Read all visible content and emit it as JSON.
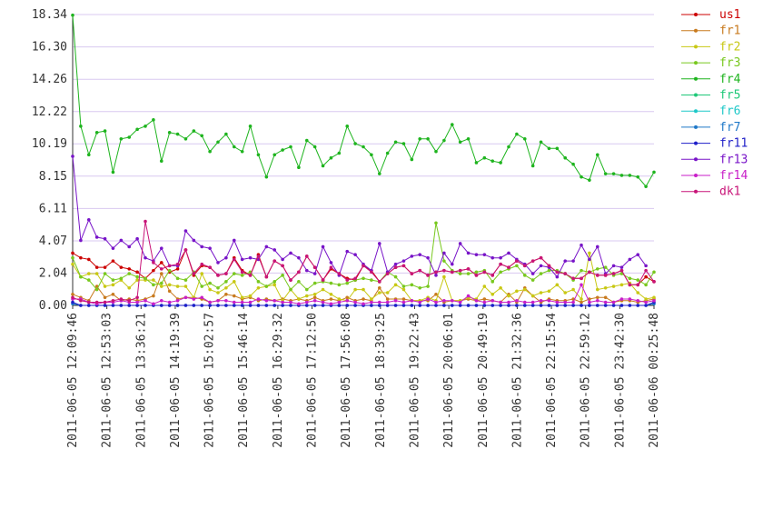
{
  "chart_data": {
    "type": "line",
    "title": "",
    "xlabel": "",
    "ylabel": "",
    "ylim": [
      0,
      18.34
    ],
    "y_ticks": [
      "0.00",
      "2.04",
      "4.07",
      "6.11",
      "8.15",
      "10.19",
      "12.22",
      "14.26",
      "16.30",
      "18.34"
    ],
    "x_tick_labels": [
      "2011-06-05 12:09:46",
      "2011-06-05 12:53:03",
      "2011-06-05 13:36:21",
      "2011-06-05 14:19:39",
      "2011-06-05 15:02:57",
      "2011-06-05 15:46:14",
      "2011-06-05 16:29:32",
      "2011-06-05 17:12:50",
      "2011-06-05 17:56:08",
      "2011-06-05 18:39:25",
      "2011-06-05 19:22:43",
      "2011-06-05 20:06:01",
      "2011-06-05 20:49:19",
      "2011-06-05 21:32:36",
      "2011-06-05 22:15:54",
      "2011-06-05 22:59:12",
      "2011-06-05 23:42:30",
      "2011-06-06 00:25:48"
    ],
    "grid": true,
    "legend_position": "right",
    "series": [
      {
        "name": "us1",
        "color": "#cc0000",
        "values": [
          3.3,
          3.0,
          2.9,
          2.4,
          2.4,
          2.8,
          2.4,
          2.3,
          2.1,
          1.7,
          2.2,
          2.7,
          2.1,
          2.3,
          3.5,
          1.9,
          2.5,
          2.4,
          1.9,
          2.0,
          3.0,
          2.2,
          1.9,
          3.2,
          1.8,
          2.8,
          2.5,
          1.6,
          2.1,
          3.1,
          2.4,
          1.6,
          2.3,
          2.0,
          1.7,
          1.6,
          2.5,
          2.2,
          1.5,
          2.0,
          2.4,
          2.5,
          2.0,
          2.2,
          1.9,
          2.1,
          2.2,
          2.1,
          2.2,
          2.3,
          1.9,
          2.1,
          1.9,
          2.6,
          2.4,
          2.8,
          2.5,
          2.8,
          3.0,
          2.5,
          2.1,
          2.0,
          1.7,
          1.7,
          2.1,
          1.9,
          1.9,
          2.0,
          2.2,
          1.3,
          1.3,
          1.8,
          1.5
        ]
      },
      {
        "name": "fr1",
        "color": "#c87a1e",
        "values": [
          0.7,
          0.5,
          0.3,
          1.2,
          0.5,
          0.7,
          0.3,
          0.4,
          0.3,
          0.4,
          0.6,
          2.0,
          0.9,
          0.4,
          0.5,
          0.5,
          0.4,
          0.2,
          0.3,
          0.7,
          0.6,
          0.4,
          0.5,
          0.3,
          0.4,
          0.3,
          0.4,
          0.3,
          0.4,
          0.3,
          0.5,
          0.3,
          0.4,
          0.3,
          0.5,
          0.3,
          0.4,
          0.3,
          1.1,
          0.4,
          0.4,
          0.4,
          0.3,
          0.3,
          0.3,
          0.7,
          0.2,
          0.3,
          0.3,
          0.4,
          0.3,
          0.4,
          0.3,
          0.2,
          0.7,
          0.2,
          1.1,
          0.6,
          0.2,
          0.4,
          0.3,
          0.3,
          0.4,
          0.2,
          0.4,
          0.5,
          0.5,
          0.2,
          0.3,
          0.3,
          0.2,
          0.3,
          0.4
        ]
      },
      {
        "name": "fr2",
        "color": "#c8c814",
        "values": [
          2.6,
          1.8,
          2.0,
          2.0,
          1.2,
          1.3,
          1.6,
          1.1,
          1.6,
          1.6,
          1.6,
          1.2,
          1.3,
          1.2,
          1.2,
          0.5,
          2.0,
          1.0,
          0.8,
          1.1,
          1.5,
          0.5,
          0.6,
          1.1,
          1.2,
          1.3,
          0.3,
          1.0,
          0.4,
          0.6,
          0.7,
          1.0,
          0.7,
          0.4,
          0.3,
          1.0,
          1.0,
          0.4,
          0.8,
          0.8,
          1.3,
          1.0,
          0.3,
          0.3,
          0.5,
          0.3,
          1.8,
          0.3,
          0.3,
          0.5,
          0.4,
          1.2,
          0.7,
          1.1,
          0.6,
          0.9,
          1.0,
          0.6,
          0.8,
          0.9,
          1.3,
          0.8,
          1.0,
          0.4,
          3.3,
          1.0,
          1.1,
          1.2,
          1.3,
          1.4,
          0.8,
          0.4,
          0.5
        ]
      },
      {
        "name": "fr3",
        "color": "#78c81e",
        "values": [
          3.0,
          1.8,
          1.6,
          1.0,
          2.0,
          1.6,
          1.7,
          2.0,
          1.8,
          1.7,
          1.3,
          1.4,
          2.2,
          1.7,
          1.6,
          2.1,
          1.2,
          1.4,
          1.1,
          1.5,
          2.0,
          1.9,
          2.1,
          1.5,
          1.2,
          1.5,
          1.9,
          1.0,
          1.5,
          1.0,
          1.4,
          1.5,
          1.4,
          1.3,
          1.4,
          1.6,
          1.7,
          1.6,
          1.5,
          2.1,
          1.8,
          1.2,
          1.3,
          1.1,
          1.2,
          5.2,
          2.8,
          2.2,
          2.0,
          2.0,
          2.1,
          2.2,
          1.5,
          2.1,
          2.3,
          2.5,
          1.9,
          1.6,
          2.0,
          2.2,
          2.2,
          2.0,
          1.6,
          2.2,
          2.1,
          2.3,
          2.4,
          1.9,
          2.0,
          1.7,
          1.6,
          1.3,
          2.1
        ]
      },
      {
        "name": "fr4",
        "color": "#1eb41e",
        "values": [
          18.3,
          11.3,
          9.5,
          10.9,
          11.0,
          8.4,
          10.5,
          10.6,
          11.1,
          11.3,
          11.7,
          9.1,
          10.9,
          10.8,
          10.5,
          11.0,
          10.7,
          9.7,
          10.3,
          10.8,
          10.0,
          9.7,
          11.3,
          9.5,
          8.1,
          9.5,
          9.8,
          10.0,
          8.7,
          10.4,
          10.0,
          8.8,
          9.3,
          9.6,
          11.3,
          10.2,
          10.0,
          9.5,
          8.3,
          9.6,
          10.3,
          10.2,
          9.2,
          10.5,
          10.5,
          9.7,
          10.4,
          11.4,
          10.3,
          10.5,
          9.0,
          9.3,
          9.1,
          9.0,
          10.0,
          10.8,
          10.5,
          8.8,
          10.3,
          9.9,
          9.9,
          9.3,
          8.9,
          8.1,
          7.9,
          9.5,
          8.3,
          8.3,
          8.2,
          8.2,
          8.1,
          7.5,
          8.4
        ]
      },
      {
        "name": "fr5",
        "color": "#1ec878",
        "values": []
      },
      {
        "name": "fr6",
        "color": "#1ec8c8",
        "values": []
      },
      {
        "name": "fr7",
        "color": "#1e78c8",
        "values": [
          0.1,
          0.0,
          0.0,
          0.0,
          0.0,
          0.0,
          0.0,
          0.0,
          0.0,
          0.0,
          0.0,
          0.0,
          0.0,
          0.0,
          0.0,
          0.0,
          0.0,
          0.0,
          0.0,
          0.0,
          0.0,
          0.0,
          0.0,
          0.0,
          0.0,
          0.0,
          0.0,
          0.0,
          0.0,
          0.0,
          0.0,
          0.0,
          0.0,
          0.0,
          0.0,
          0.0,
          0.0,
          0.0,
          0.0,
          0.0,
          0.0,
          0.0,
          0.0,
          0.0,
          0.0,
          0.0,
          0.0,
          0.0,
          0.0,
          0.0,
          0.0,
          0.0,
          0.0,
          0.0,
          0.0,
          0.0,
          0.0,
          0.0,
          0.0,
          0.0,
          0.0,
          0.0,
          0.0,
          0.0,
          0.0,
          0.0,
          0.0,
          0.0,
          0.0,
          0.0,
          0.0,
          0.0,
          0.1
        ]
      },
      {
        "name": "fr11",
        "color": "#1e1ec8",
        "values": [
          0.2,
          0.0,
          0.0,
          0.0,
          0.0,
          0.0,
          0.0,
          0.0,
          0.0,
          0.0,
          0.0,
          0.0,
          0.0,
          0.0,
          0.0,
          0.0,
          0.0,
          0.0,
          0.0,
          0.0,
          0.0,
          0.0,
          0.0,
          0.0,
          0.0,
          0.0,
          0.0,
          0.0,
          0.0,
          0.0,
          0.0,
          0.0,
          0.0,
          0.0,
          0.0,
          0.0,
          0.0,
          0.0,
          0.0,
          0.0,
          0.0,
          0.0,
          0.0,
          0.0,
          0.0,
          0.0,
          0.0,
          0.0,
          0.0,
          0.0,
          0.0,
          0.0,
          0.0,
          0.0,
          0.0,
          0.0,
          0.0,
          0.0,
          0.0,
          0.0,
          0.0,
          0.0,
          0.0,
          0.0,
          0.0,
          0.0,
          0.0,
          0.0,
          0.0,
          0.0,
          0.0,
          0.0,
          0.2
        ]
      },
      {
        "name": "fr13",
        "color": "#7814c8",
        "values": [
          9.4,
          4.1,
          5.4,
          4.3,
          4.2,
          3.6,
          4.1,
          3.7,
          4.2,
          3.0,
          2.8,
          3.6,
          2.5,
          2.5,
          4.7,
          4.1,
          3.7,
          3.6,
          2.7,
          3.0,
          4.1,
          2.9,
          3.0,
          2.9,
          3.7,
          3.5,
          2.9,
          3.3,
          3.0,
          2.2,
          2.0,
          3.7,
          2.7,
          1.9,
          3.4,
          3.2,
          2.6,
          2.2,
          3.9,
          2.1,
          2.6,
          2.8,
          3.1,
          3.2,
          3.0,
          1.9,
          3.3,
          2.6,
          3.9,
          3.3,
          3.2,
          3.2,
          3.0,
          3.0,
          3.3,
          2.9,
          2.6,
          2.0,
          2.5,
          2.4,
          1.8,
          2.8,
          2.8,
          3.8,
          2.9,
          3.7,
          2.0,
          2.5,
          2.4,
          2.9,
          3.2,
          2.5
        ]
      },
      {
        "name": "fr14",
        "color": "#c81ec8",
        "values": [
          0.4,
          0.4,
          0.2,
          0.1,
          0.2,
          0.2,
          0.3,
          0.2,
          0.2,
          0.3,
          0.1,
          0.3,
          0.2,
          0.3,
          0.5,
          0.4,
          0.5,
          0.2,
          0.3,
          0.3,
          0.2,
          0.2,
          0.2,
          0.4,
          0.3,
          0.3,
          0.2,
          0.2,
          0.1,
          0.2,
          0.3,
          0.2,
          0.1,
          0.2,
          0.3,
          0.2,
          0.1,
          0.2,
          0.2,
          0.2,
          0.3,
          0.2,
          0.3,
          0.2,
          0.4,
          0.2,
          0.3,
          0.3,
          0.2,
          0.6,
          0.3,
          0.2,
          0.3,
          0.2,
          0.2,
          0.3,
          0.2,
          0.2,
          0.3,
          0.3,
          0.2,
          0.2,
          0.2,
          1.3,
          0.2,
          0.3,
          0.2,
          0.2,
          0.4,
          0.4,
          0.3,
          0.2,
          0.3
        ]
      },
      {
        "name": "dk1",
        "color": "#c81478",
        "values": [
          0.5,
          0.3,
          0.2,
          0.2,
          0.2,
          0.3,
          0.4,
          0.3,
          0.5,
          5.3,
          2.7,
          2.3,
          2.5,
          2.6,
          3.5,
          2.0,
          2.6,
          2.4,
          1.9,
          2.0,
          2.9,
          2.1,
          1.9,
          3.1,
          1.8,
          2.8,
          2.5,
          1.6,
          2.1,
          3.1,
          2.4,
          1.6,
          2.4,
          2.0,
          1.6,
          1.7,
          2.5,
          2.1,
          1.5,
          2.0,
          2.4,
          2.5,
          2.0,
          2.2,
          1.9,
          2.1,
          2.2,
          2.1,
          2.2,
          2.3,
          1.9,
          2.1,
          1.9,
          2.6,
          2.4,
          2.8,
          2.5,
          2.8,
          3.0,
          2.5,
          2.1,
          2.0,
          1.7,
          1.7,
          2.1,
          1.9,
          1.9,
          2.0,
          2.2,
          1.3,
          1.3,
          2.2,
          1.5
        ]
      }
    ]
  }
}
